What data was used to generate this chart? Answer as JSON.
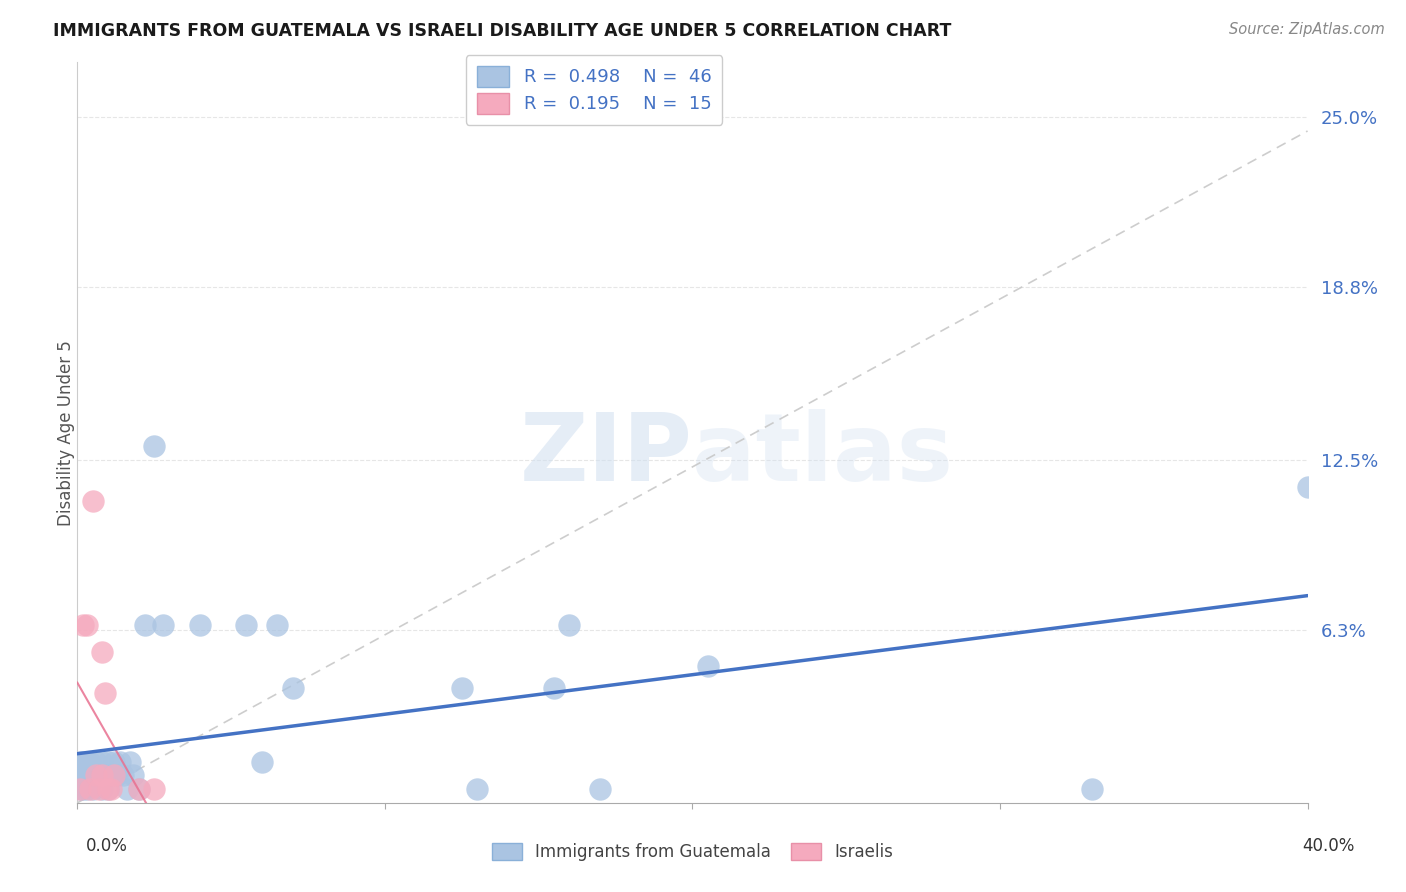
{
  "title": "IMMIGRANTS FROM GUATEMALA VS ISRAELI DISABILITY AGE UNDER 5 CORRELATION CHART",
  "source": "Source: ZipAtlas.com",
  "ylabel": "Disability Age Under 5",
  "y_tick_labels": [
    "6.3%",
    "12.5%",
    "18.8%",
    "25.0%"
  ],
  "y_tick_values": [
    0.063,
    0.125,
    0.188,
    0.25
  ],
  "xlim": [
    0.0,
    0.4
  ],
  "ylim": [
    0.0,
    0.27
  ],
  "series1_color": "#aac4e2",
  "series2_color": "#f5aabe",
  "trendline1_color": "#4472c4",
  "trendline2_color": "#e87090",
  "trendline_grey_color": "#c8c8c8",
  "background_color": "#ffffff",
  "grid_color": "#e0e0e0",
  "watermark_color": "#d0dff0",
  "guatemala_x": [
    0.001,
    0.001,
    0.001,
    0.002,
    0.002,
    0.002,
    0.003,
    0.003,
    0.003,
    0.004,
    0.004,
    0.005,
    0.005,
    0.006,
    0.006,
    0.007,
    0.008,
    0.008,
    0.009,
    0.01,
    0.01,
    0.011,
    0.012,
    0.013,
    0.014,
    0.015,
    0.016,
    0.017,
    0.018,
    0.02,
    0.022,
    0.025,
    0.028,
    0.04,
    0.055,
    0.06,
    0.065,
    0.07,
    0.125,
    0.13,
    0.155,
    0.16,
    0.17,
    0.205,
    0.33,
    0.4
  ],
  "guatemala_y": [
    0.005,
    0.01,
    0.015,
    0.005,
    0.01,
    0.015,
    0.005,
    0.01,
    0.015,
    0.01,
    0.015,
    0.005,
    0.01,
    0.01,
    0.015,
    0.01,
    0.005,
    0.015,
    0.01,
    0.005,
    0.015,
    0.01,
    0.015,
    0.01,
    0.015,
    0.01,
    0.005,
    0.015,
    0.01,
    0.005,
    0.065,
    0.13,
    0.065,
    0.065,
    0.065,
    0.015,
    0.065,
    0.042,
    0.042,
    0.005,
    0.042,
    0.065,
    0.005,
    0.05,
    0.005,
    0.115
  ],
  "israeli_x": [
    0.001,
    0.002,
    0.003,
    0.004,
    0.005,
    0.006,
    0.007,
    0.008,
    0.008,
    0.009,
    0.01,
    0.011,
    0.012,
    0.02,
    0.025
  ],
  "israeli_y": [
    0.005,
    0.065,
    0.065,
    0.005,
    0.11,
    0.01,
    0.005,
    0.055,
    0.01,
    0.04,
    0.005,
    0.005,
    0.01,
    0.005,
    0.005
  ],
  "blue_line_x0": 0.0,
  "blue_line_y0": 0.0,
  "blue_line_x1": 0.4,
  "blue_line_y1": 0.115,
  "pink_line_x0": 0.0,
  "pink_line_x1": 0.027,
  "grey_line_x0": 0.0,
  "grey_line_y0": 0.0,
  "grey_line_x1": 0.4,
  "grey_line_y1": 0.245
}
